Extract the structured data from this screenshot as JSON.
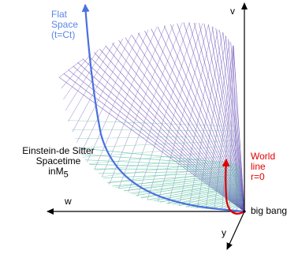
{
  "labels": {
    "flat_space": [
      "Flat",
      "Space",
      "(t=Ct)"
    ],
    "spacetime": [
      "Einstein-de Sitter",
      "Spacetime"
    ],
    "in_m5": {
      "prefix": "inM",
      "sub": "5"
    },
    "world_line": [
      "World",
      "line",
      "r=0"
    ],
    "big_bang": "big bang",
    "axis_v": "v",
    "axis_w": "w",
    "axis_y": "y"
  },
  "colors": {
    "flat_space": "#5b86e8",
    "world_line": "#e00000",
    "mesh_upper": "#6a4fb8",
    "mesh_lower": "#58c8a8",
    "axes": "#000000"
  }
}
